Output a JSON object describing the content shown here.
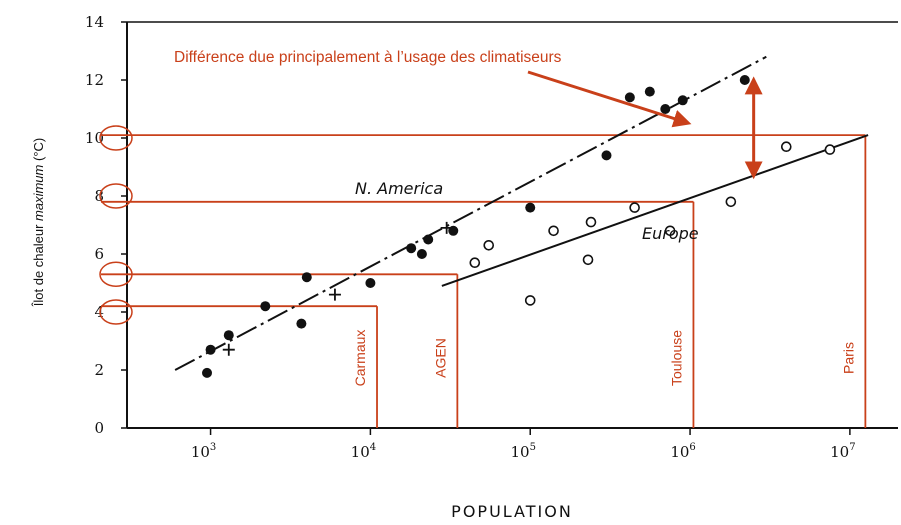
{
  "chart_data": {
    "type": "scatter",
    "xlabel": "POPULATION",
    "ylabel": {
      "prefix": "Îlot de chaleur ",
      "emph": "maximum",
      "suffix": " (°C)"
    },
    "x_scale": "log",
    "xlim": [
      300,
      20000000
    ],
    "ylim": [
      0,
      14
    ],
    "x_ticks": [
      {
        "base": "10",
        "exp": "3",
        "value": 1000
      },
      {
        "base": "10",
        "exp": "4",
        "value": 10000
      },
      {
        "base": "10",
        "exp": "5",
        "value": 100000
      },
      {
        "base": "10",
        "exp": "6",
        "value": 1000000
      },
      {
        "base": "10",
        "exp": "7",
        "value": 10000000
      }
    ],
    "y_ticks": [
      "0",
      "2",
      "4",
      "6",
      "8",
      "10",
      "12",
      "14"
    ],
    "series": [
      {
        "name": "N. America",
        "marker": "filled-circle",
        "points": [
          [
            950,
            1.9
          ],
          [
            1000,
            2.7
          ],
          [
            1300,
            3.2
          ],
          [
            2200,
            4.2
          ],
          [
            3700,
            3.6
          ],
          [
            4000,
            5.2
          ],
          [
            10000,
            5.0
          ],
          [
            18000,
            6.2
          ],
          [
            21000,
            6.0
          ],
          [
            23000,
            6.5
          ],
          [
            33000,
            6.8
          ],
          [
            100000,
            7.6
          ],
          [
            300000,
            9.4
          ],
          [
            420000,
            11.4
          ],
          [
            560000,
            11.6
          ],
          [
            700000,
            11.0
          ],
          [
            900000,
            11.3
          ],
          [
            2200000,
            12.0
          ]
        ],
        "trend": [
          [
            600,
            2.0
          ],
          [
            3000000,
            12.8
          ]
        ]
      },
      {
        "name": "Europe",
        "marker": "open-circle",
        "points": [
          [
            45000,
            5.7
          ],
          [
            55000,
            6.3
          ],
          [
            100000,
            4.4
          ],
          [
            140000,
            6.8
          ],
          [
            230000,
            5.8
          ],
          [
            240000,
            7.1
          ],
          [
            450000,
            7.6
          ],
          [
            750000,
            6.8
          ],
          [
            1800000,
            7.8
          ],
          [
            4000000,
            9.7
          ],
          [
            7500000,
            9.6
          ]
        ],
        "trend": [
          [
            28000,
            4.9
          ],
          [
            13000000,
            10.1
          ]
        ]
      },
      {
        "name": "",
        "marker": "plus",
        "points": [
          [
            1300,
            2.7
          ],
          [
            6000,
            4.6
          ],
          [
            30000,
            6.9
          ]
        ]
      }
    ],
    "annotation": "Différence due principalement à l’usage des climatiseurs",
    "annotation_color": "#c9401a",
    "cities": [
      {
        "name": "Carmaux",
        "population": 11000,
        "delta": 4.2
      },
      {
        "name": "AGEN",
        "population": 35000,
        "delta": 5.3
      },
      {
        "name": "Toulouse",
        "population": 1050000,
        "delta": 7.8
      },
      {
        "name": "Paris",
        "population": 12500000,
        "delta": 10.1
      }
    ],
    "highlighted_y_ticks": [
      "4",
      "",
      "8",
      "10"
    ],
    "difference_arrow": {
      "population": 2500000,
      "from": 12.0,
      "to": 8.7
    }
  }
}
